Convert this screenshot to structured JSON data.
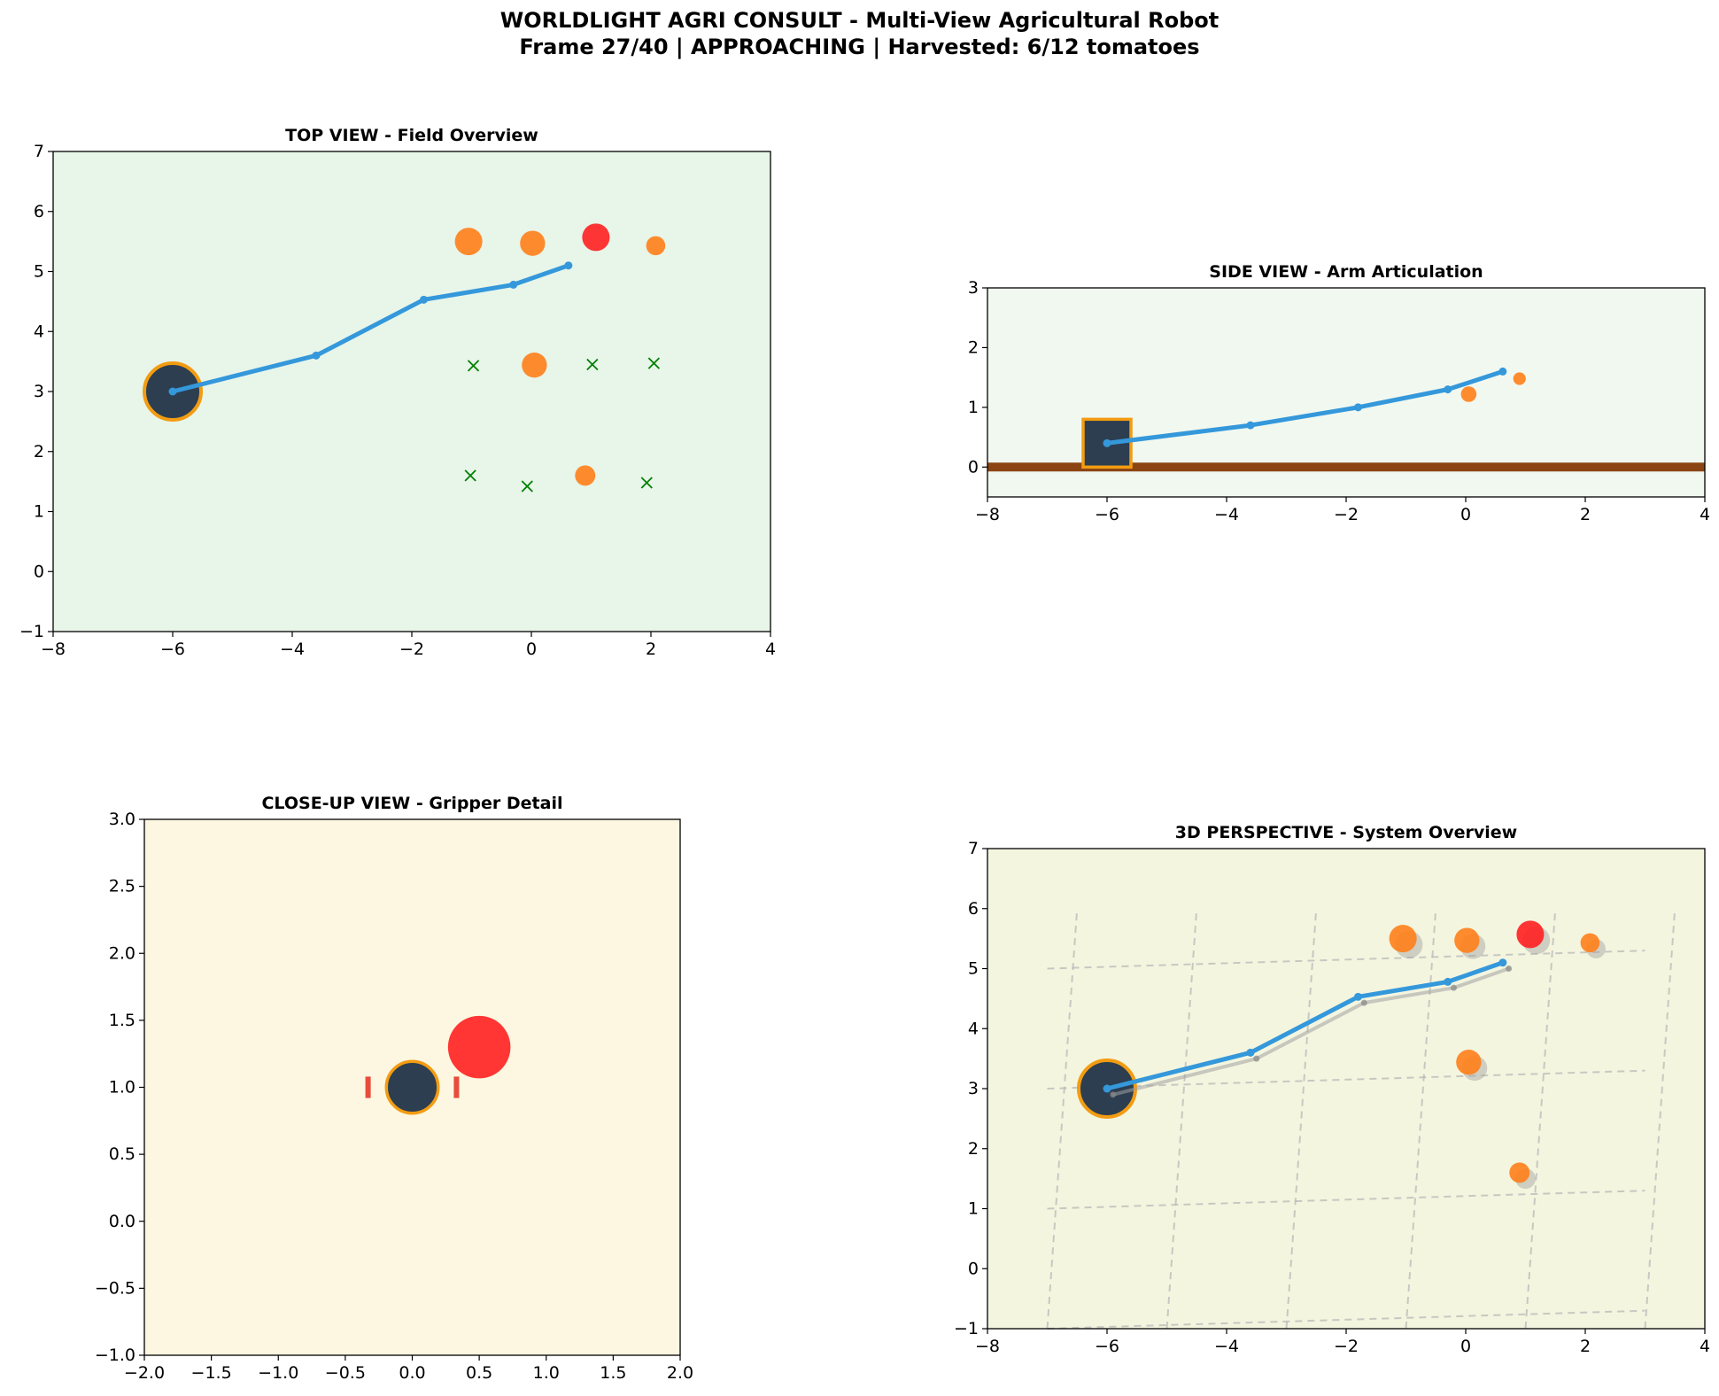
{
  "suptitle": {
    "line1": "WORLDLIGHT AGRI CONSULT - Multi-View Agricultural Robot",
    "line2": "Frame 27/40 | APPROACHING | Harvested: 6/12 tomatoes"
  },
  "colors": {
    "arm": "#3498db",
    "robot_body": "#2c3e50",
    "robot_edge": "#f39c12",
    "tomato_ripe": "#ff7f1a",
    "tomato_target": "#ff2020",
    "harvested_marker": "#008000",
    "soil": "#8b4513",
    "gripper_finger": "#e74c3c",
    "shadow": "#a0a0a0",
    "bg_top": "#e8f5e9",
    "bg_side": "#f1f8f0",
    "bg_close": "#fdf7e1",
    "bg_3d": "#f4f5df"
  },
  "chart_data": [
    {
      "id": "top",
      "type": "scatter",
      "title": "TOP VIEW - Field Overview",
      "xlim": [
        -8,
        4
      ],
      "ylim": [
        -1,
        7
      ],
      "xticks": [
        -8,
        -6,
        -4,
        -2,
        0,
        2,
        4
      ],
      "yticks": [
        -1,
        0,
        1,
        2,
        3,
        4,
        5,
        6,
        7
      ],
      "grid": false,
      "robot": {
        "x": -6,
        "y": 3,
        "size": 1.0
      },
      "arm": [
        [
          -6,
          3
        ],
        [
          -3.6,
          3.6
        ],
        [
          -1.8,
          4.53
        ],
        [
          -0.3,
          4.78
        ],
        [
          0.62,
          5.1
        ]
      ],
      "tomatoes": [
        {
          "x": -1.05,
          "y": 5.5,
          "r": 0.23,
          "target": false
        },
        {
          "x": 0.02,
          "y": 5.47,
          "r": 0.21,
          "target": false
        },
        {
          "x": 1.08,
          "y": 5.57,
          "r": 0.23,
          "target": true
        },
        {
          "x": 2.08,
          "y": 5.43,
          "r": 0.16,
          "target": false
        },
        {
          "x": 0.05,
          "y": 3.44,
          "r": 0.21,
          "target": false
        },
        {
          "x": 0.9,
          "y": 1.6,
          "r": 0.17,
          "target": false
        }
      ],
      "harvested": [
        [
          -0.97,
          3.43
        ],
        [
          1.02,
          3.45
        ],
        [
          2.05,
          3.47
        ],
        [
          -1.02,
          1.6
        ],
        [
          -0.07,
          1.42
        ],
        [
          1.93,
          1.48
        ]
      ]
    },
    {
      "id": "side",
      "type": "line",
      "title": "SIDE VIEW - Arm Articulation",
      "xlim": [
        -8,
        4
      ],
      "ylim": [
        -0.5,
        3
      ],
      "xticks": [
        -8,
        -6,
        -4,
        -2,
        0,
        2,
        4
      ],
      "yticks": [
        0,
        1,
        2,
        3
      ],
      "grid": false,
      "ground_y": 0,
      "robot_box": {
        "x0": -6.4,
        "x1": -5.6,
        "y0": 0,
        "y1": 0.8
      },
      "arm": [
        [
          -6,
          0.4
        ],
        [
          -3.6,
          0.7
        ],
        [
          -1.8,
          1.0
        ],
        [
          -0.3,
          1.3
        ],
        [
          0.62,
          1.6
        ]
      ],
      "tomatoes": [
        {
          "x": 0.05,
          "y": 1.22,
          "r": 0.21
        },
        {
          "x": 0.9,
          "y": 1.48,
          "r": 0.17
        }
      ]
    },
    {
      "id": "close",
      "type": "scatter",
      "title": "CLOSE-UP VIEW - Gripper Detail",
      "xlim": [
        -2,
        2
      ],
      "ylim": [
        -1,
        3
      ],
      "xticks": [
        -2.0,
        -1.5,
        -1.0,
        -0.5,
        0.0,
        0.5,
        1.0,
        1.5,
        2.0
      ],
      "yticks": [
        -1.0,
        -0.5,
        0.0,
        0.5,
        1.0,
        1.5,
        2.0,
        2.5,
        3.0
      ],
      "grid": false,
      "gripper": {
        "x": 0,
        "y": 1,
        "r": 0.2
      },
      "fingers": [
        {
          "x": -0.33,
          "y0": 0.92,
          "y1": 1.08
        },
        {
          "x": 0.33,
          "y0": 0.92,
          "y1": 1.08
        }
      ],
      "target": {
        "x": 0.5,
        "y": 1.3,
        "r": 0.22
      }
    },
    {
      "id": "persp",
      "type": "scatter",
      "title": "3D PERSPECTIVE - System Overview",
      "xlim": [
        -8,
        4
      ],
      "ylim": [
        -1,
        7
      ],
      "xticks": [
        -8,
        -6,
        -4,
        -2,
        0,
        2,
        4
      ],
      "yticks": [
        -1,
        0,
        1,
        2,
        3,
        4,
        5,
        6,
        7
      ],
      "grid": false,
      "ground_lines": [
        [
          [
            -7,
            5
          ],
          [
            3,
            5.3
          ]
        ],
        [
          [
            -7,
            3
          ],
          [
            3,
            3.3
          ]
        ],
        [
          [
            -7,
            1
          ],
          [
            3,
            1.3
          ]
        ],
        [
          [
            -7,
            -1
          ],
          [
            3,
            -0.7
          ]
        ],
        [
          [
            -7,
            -1
          ],
          [
            -6.5,
            6
          ]
        ],
        [
          [
            -5,
            -1
          ],
          [
            -4.5,
            6
          ]
        ],
        [
          [
            -3,
            -1
          ],
          [
            -2.5,
            6
          ]
        ],
        [
          [
            -1,
            -1
          ],
          [
            -0.5,
            6
          ]
        ],
        [
          [
            1,
            -1
          ],
          [
            1.5,
            6
          ]
        ],
        [
          [
            3,
            -1
          ],
          [
            3.5,
            6
          ]
        ]
      ],
      "robot": {
        "x": -6,
        "y": 3
      },
      "arm": [
        [
          -6,
          3
        ],
        [
          -3.6,
          3.6
        ],
        [
          -1.8,
          4.53
        ],
        [
          -0.3,
          4.78
        ],
        [
          0.62,
          5.1
        ]
      ],
      "arm_shadow": [
        [
          -5.9,
          2.9
        ],
        [
          -3.5,
          3.5
        ],
        [
          -1.7,
          4.43
        ],
        [
          -0.2,
          4.68
        ],
        [
          0.72,
          5.0
        ]
      ],
      "tomatoes": [
        {
          "x": -1.05,
          "y": 5.5,
          "r": 0.23,
          "target": false
        },
        {
          "x": 0.02,
          "y": 5.47,
          "r": 0.21,
          "target": false
        },
        {
          "x": 1.08,
          "y": 5.57,
          "r": 0.23,
          "target": true
        },
        {
          "x": 2.08,
          "y": 5.43,
          "r": 0.16,
          "target": false
        },
        {
          "x": 0.05,
          "y": 3.44,
          "r": 0.21,
          "target": false
        },
        {
          "x": 0.9,
          "y": 1.6,
          "r": 0.17,
          "target": false
        }
      ]
    }
  ]
}
